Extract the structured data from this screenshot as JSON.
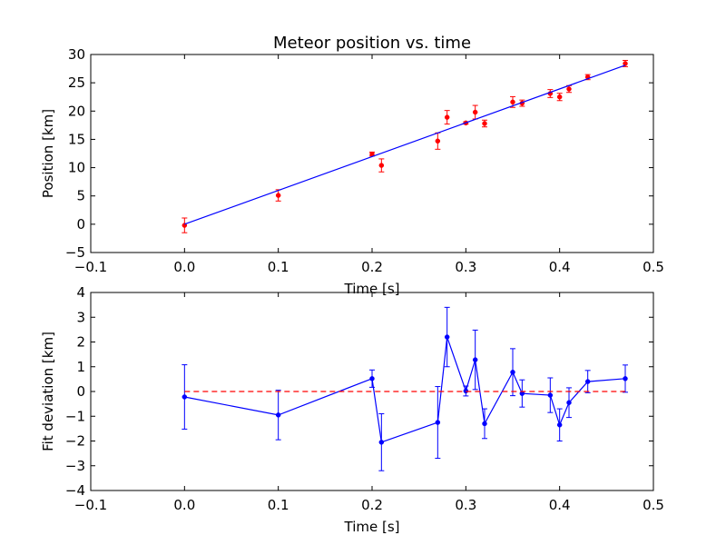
{
  "chart_data": [
    {
      "type": "scatter",
      "title": "Meteor position vs. time",
      "xlabel": "Time [s]",
      "ylabel": "Position [km]",
      "xlim": [
        -0.1,
        0.5
      ],
      "ylim": [
        -5,
        30
      ],
      "xticks": [
        -0.1,
        0.0,
        0.1,
        0.2,
        0.3,
        0.4,
        0.5
      ],
      "xtick_labels": [
        "−0.1",
        "0.0",
        "0.1",
        "0.2",
        "0.3",
        "0.4",
        "0.5"
      ],
      "yticks": [
        -5,
        0,
        5,
        10,
        15,
        20,
        25,
        30
      ],
      "ytick_labels": [
        "−5",
        "0",
        "5",
        "10",
        "15",
        "20",
        "25",
        "30"
      ],
      "grid": false,
      "series": [
        {
          "kind": "errorbar-points",
          "color": "#ff0000",
          "x": [
            0.0,
            0.1,
            0.2,
            0.21,
            0.27,
            0.28,
            0.3,
            0.31,
            0.32,
            0.35,
            0.36,
            0.39,
            0.4,
            0.41,
            0.43,
            0.47
          ],
          "y": [
            -0.2,
            5.1,
            12.4,
            10.4,
            14.7,
            18.9,
            17.9,
            19.8,
            17.8,
            21.6,
            21.4,
            23.1,
            22.5,
            23.9,
            26.0,
            28.4
          ],
          "yerr": [
            1.3,
            1.0,
            0.35,
            1.15,
            1.45,
            1.2,
            0.2,
            1.2,
            0.6,
            0.95,
            0.55,
            0.7,
            0.65,
            0.6,
            0.45,
            0.55
          ]
        },
        {
          "kind": "fit-line",
          "color": "#0000ff",
          "x": [
            0.0,
            0.47
          ],
          "y": [
            0.0,
            28.1
          ]
        }
      ]
    },
    {
      "type": "line",
      "title": "",
      "xlabel": "Time [s]",
      "ylabel": "Fit deviation [km]",
      "xlim": [
        -0.1,
        0.5
      ],
      "ylim": [
        -4,
        4
      ],
      "xticks": [
        -0.1,
        0.0,
        0.1,
        0.2,
        0.3,
        0.4,
        0.5
      ],
      "xtick_labels": [
        "−0.1",
        "0.0",
        "0.1",
        "0.2",
        "0.3",
        "0.4",
        "0.5"
      ],
      "yticks": [
        -4,
        -3,
        -2,
        -1,
        0,
        1,
        2,
        3,
        4
      ],
      "ytick_labels": [
        "−4",
        "−3",
        "−2",
        "−1",
        "0",
        "1",
        "2",
        "3",
        "4"
      ],
      "grid": false,
      "series": [
        {
          "kind": "errorbar-line",
          "color": "#0000ff",
          "x": [
            0.0,
            0.1,
            0.2,
            0.21,
            0.27,
            0.28,
            0.3,
            0.31,
            0.32,
            0.35,
            0.36,
            0.39,
            0.4,
            0.41,
            0.43,
            0.47
          ],
          "y": [
            -0.22,
            -0.95,
            0.52,
            -2.05,
            -1.25,
            2.2,
            0.02,
            1.28,
            -1.3,
            0.78,
            -0.08,
            -0.15,
            -1.35,
            -0.45,
            0.4,
            0.52
          ],
          "yerr": [
            1.3,
            1.0,
            0.35,
            1.15,
            1.45,
            1.2,
            0.2,
            1.2,
            0.6,
            0.95,
            0.55,
            0.7,
            0.65,
            0.6,
            0.45,
            0.55
          ]
        },
        {
          "kind": "reference-line",
          "color": "#ff0000",
          "style": "dashed",
          "x": [
            0.0,
            0.47
          ],
          "y": [
            0,
            0
          ]
        }
      ]
    }
  ]
}
